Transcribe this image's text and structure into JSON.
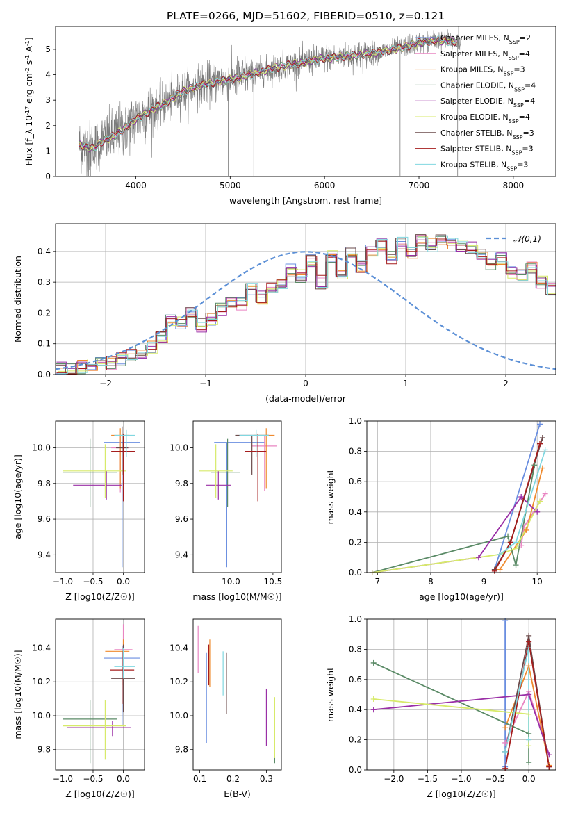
{
  "title": "PLATE=0266, MJD=51602, FIBERID=0510, z=0.121",
  "colors": {
    "Chabrier MILES": "#6a8ee0",
    "Salpeter MILES": "#e985c2",
    "Kroupa MILES": "#ef8a2e",
    "Chabrier ELODIE": "#5a8a66",
    "Salpeter ELODIE": "#9a2fa6",
    "Kroupa ELODIE": "#d7ea6a",
    "Chabrier STELIB": "#6a4a4a",
    "Salpeter STELIB": "#a51d1d",
    "Kroupa STELIB": "#80d7e0",
    "data": "#7a7a7a",
    "normal": "#5b8fd6"
  },
  "chart_data": [
    {
      "id": "spectrum",
      "type": "line",
      "xlabel": "wavelength [Angstrom, rest frame]",
      "ylabel": "Flux [f_λ 10^-17 erg cm^-2 s^-1 A^-1]",
      "xlim": [
        3150,
        8450
      ],
      "ylim": [
        0,
        5.9
      ],
      "xticks": [
        "4000",
        "5000",
        "6000",
        "7000",
        "8000"
      ],
      "yticks": [
        "0",
        "1",
        "2",
        "3",
        "4",
        "5"
      ],
      "legend_position": "top-right",
      "legend": [
        "Chabrier MILES, N_SSP=2",
        "Salpeter MILES, N_SSP=4",
        "Kroupa MILES, N_SSP=3",
        "Chabrier ELODIE, N_SSP=4",
        "Salpeter ELODIE, N_SSP=4",
        "Kroupa ELODIE, N_SSP=4",
        "Chabrier STELIB, N_SSP=3",
        "Salpeter STELIB, N_SSP=3",
        "Kroupa STELIB, N_SSP=3"
      ],
      "continuum": {
        "x": [
          3400,
          3550,
          3650,
          3750,
          3900,
          4000,
          4100,
          4200,
          4300,
          4500,
          4700,
          4900,
          5100,
          5300,
          5500,
          5800,
          6000,
          6300,
          6600,
          6800,
          7000,
          7200,
          7400
        ],
        "y": [
          1.25,
          1.1,
          1.4,
          1.55,
          1.95,
          2.25,
          2.45,
          2.7,
          2.85,
          3.35,
          3.6,
          3.75,
          3.9,
          4.1,
          4.3,
          4.5,
          4.65,
          4.75,
          4.9,
          5.05,
          5.25,
          5.35,
          5.3
        ]
      }
    },
    {
      "id": "residuals",
      "type": "histogram",
      "xlabel": "(data-model)/error",
      "ylabel": "Normed distribution",
      "xlim": [
        -2.5,
        2.5
      ],
      "ylim": [
        0,
        0.49
      ],
      "xticks": [
        "−2",
        "−1",
        "0",
        "1",
        "2"
      ],
      "yticks": [
        "0.0",
        "0.1",
        "0.2",
        "0.3",
        "0.4"
      ],
      "legend": "𝒩(0,1)",
      "legend_position": "top-right",
      "bin_width": 0.1,
      "base_density": [
        0.02,
        0.02,
        0.025,
        0.03,
        0.035,
        0.04,
        0.05,
        0.06,
        0.075,
        0.09,
        0.12,
        0.18,
        0.17,
        0.2,
        0.16,
        0.18,
        0.21,
        0.24,
        0.23,
        0.28,
        0.25,
        0.28,
        0.3,
        0.34,
        0.32,
        0.37,
        0.3,
        0.38,
        0.33,
        0.4,
        0.35,
        0.4,
        0.42,
        0.38,
        0.43,
        0.4,
        0.44,
        0.42,
        0.44,
        0.43,
        0.42,
        0.41,
        0.39,
        0.36,
        0.38,
        0.33,
        0.32,
        0.35,
        0.3,
        0.28,
        0.27,
        0.24,
        0.22,
        0.2,
        0.18,
        0.19,
        0.16,
        0.16,
        0.14,
        0.15,
        0.12,
        0.11,
        0.13,
        0.1,
        0.09,
        0.1,
        0.08,
        0.07,
        0.08,
        0.06,
        0.06,
        0.05,
        0.05,
        0.04,
        0.04,
        0.03,
        0.035,
        0.03,
        0.025,
        0.02
      ]
    },
    {
      "id": "age-vs-Z",
      "type": "errorbar",
      "xlabel": "Z [log10(Z/Z☉)]",
      "ylabel": "age [log10(age/yr)]",
      "xlim": [
        -1.12,
        0.35
      ],
      "ylim": [
        9.3,
        10.15
      ],
      "xticks": [
        "−1.0",
        "−0.5",
        "0.0"
      ],
      "yticks": [
        "9.4",
        "9.6",
        "9.8",
        "10.0"
      ],
      "points": [
        {
          "series": "Chabrier MILES",
          "x": -0.02,
          "xerr": [
            0.3,
            0.3
          ],
          "y": 10.03,
          "yerr": [
            0.7,
            0.0
          ]
        },
        {
          "series": "Salpeter MILES",
          "x": -0.05,
          "xerr": [
            0.15,
            0.15
          ],
          "y": 10.0,
          "yerr": [
            0.25,
            0.07
          ]
        },
        {
          "series": "Kroupa MILES",
          "x": -0.05,
          "xerr": [
            0.15,
            0.15
          ],
          "y": 10.07,
          "yerr": [
            0.3,
            0.04
          ]
        },
        {
          "series": "Chabrier ELODIE",
          "x": -0.55,
          "xerr": [
            0.45,
            0.45
          ],
          "y": 9.86,
          "yerr": [
            0.19,
            0.19
          ]
        },
        {
          "series": "Salpeter ELODIE",
          "x": -0.28,
          "xerr": [
            0.55,
            0.25
          ],
          "y": 9.79,
          "yerr": [
            0.08,
            0.08
          ]
        },
        {
          "series": "Kroupa ELODIE",
          "x": -0.3,
          "xerr": [
            0.7,
            0.35
          ],
          "y": 9.87,
          "yerr": [
            0.15,
            0.15
          ]
        },
        {
          "series": "Chabrier STELIB",
          "x": -0.02,
          "xerr": [
            0.1,
            0.1
          ],
          "y": 10.0,
          "yerr": [
            0.15,
            0.12
          ]
        },
        {
          "series": "Salpeter STELIB",
          "x": 0.0,
          "xerr": [
            0.2,
            0.2
          ],
          "y": 9.98,
          "yerr": [
            0.28,
            0.1
          ]
        },
        {
          "series": "Kroupa STELIB",
          "x": 0.05,
          "xerr": [
            0.2,
            0.15
          ],
          "y": 10.07,
          "yerr": [
            0.12,
            0.03
          ]
        }
      ]
    },
    {
      "id": "age-vs-mass",
      "type": "errorbar",
      "xlabel": "mass [log10(M/M☉)]",
      "ylabel": "",
      "xlim": [
        9.55,
        10.6
      ],
      "ylim": [
        9.3,
        10.15
      ],
      "xticks": [
        "10.0",
        "10.5"
      ],
      "yticks": [
        "9.4",
        "9.6",
        "9.8",
        "10.0"
      ],
      "points": [
        {
          "series": "Chabrier MILES",
          "x": 9.95,
          "xerr": [
            0.15,
            0.45
          ],
          "y": 10.03,
          "yerr": [
            0.7,
            0.0
          ]
        },
        {
          "series": "Salpeter MILES",
          "x": 10.4,
          "xerr": [
            0.15,
            0.15
          ],
          "y": 10.01,
          "yerr": [
            0.25,
            0.06
          ]
        },
        {
          "series": "Kroupa MILES",
          "x": 10.42,
          "xerr": [
            0.15,
            0.1
          ],
          "y": 10.07,
          "yerr": [
            0.3,
            0.04
          ]
        },
        {
          "series": "Chabrier ELODIE",
          "x": 9.96,
          "xerr": [
            0.2,
            0.15
          ],
          "y": 9.86,
          "yerr": [
            0.19,
            0.19
          ]
        },
        {
          "series": "Salpeter ELODIE",
          "x": 9.85,
          "xerr": [
            0.15,
            0.15
          ],
          "y": 9.79,
          "yerr": [
            0.08,
            0.08
          ]
        },
        {
          "series": "Kroupa ELODIE",
          "x": 9.82,
          "xerr": [
            0.2,
            0.2
          ],
          "y": 9.87,
          "yerr": [
            0.15,
            0.15
          ]
        },
        {
          "series": "Chabrier STELIB",
          "x": 10.25,
          "xerr": [
            0.2,
            0.2
          ],
          "y": 10.07,
          "yerr": [
            0.22,
            0.0
          ]
        },
        {
          "series": "Salpeter STELIB",
          "x": 10.32,
          "xerr": [
            0.15,
            0.1
          ],
          "y": 9.98,
          "yerr": [
            0.28,
            0.1
          ]
        },
        {
          "series": "Kroupa STELIB",
          "x": 10.3,
          "xerr": [
            0.2,
            0.15
          ],
          "y": 10.07,
          "yerr": [
            0.12,
            0.03
          ]
        }
      ]
    },
    {
      "id": "weight-vs-age",
      "type": "line",
      "xlabel": "age [log10(age/yr)]",
      "ylabel": "mass weight",
      "xlim": [
        6.8,
        10.35
      ],
      "ylim": [
        0,
        1.0
      ],
      "xticks": [
        "7",
        "8",
        "9",
        "10"
      ],
      "yticks": [
        "0.0",
        "0.2",
        "0.4",
        "0.6",
        "0.8",
        "1.0"
      ],
      "series": [
        {
          "name": "Chabrier MILES",
          "x": [
            9.2,
            10.05
          ],
          "y": [
            0.02,
            0.98
          ]
        },
        {
          "name": "Salpeter MILES",
          "x": [
            9.7,
            9.75,
            10.15
          ],
          "y": [
            0.18,
            0.3,
            0.52
          ]
        },
        {
          "name": "Kroupa MILES",
          "x": [
            9.3,
            9.8,
            10.1
          ],
          "y": [
            0.02,
            0.28,
            0.69
          ]
        },
        {
          "name": "Chabrier ELODIE",
          "x": [
            6.9,
            9.45,
            9.6,
            9.95
          ],
          "y": [
            0.0,
            0.24,
            0.05,
            0.71
          ]
        },
        {
          "name": "Salpeter ELODIE",
          "x": [
            6.9,
            8.9,
            9.7,
            10.0
          ],
          "y": [
            0.0,
            0.1,
            0.5,
            0.4
          ]
        },
        {
          "name": "Kroupa ELODIE",
          "x": [
            6.9,
            9.3,
            9.6,
            10.05
          ],
          "y": [
            0.0,
            0.12,
            0.16,
            0.47
          ]
        },
        {
          "name": "Chabrier STELIB",
          "x": [
            9.2,
            9.5,
            10.1
          ],
          "y": [
            0.02,
            0.2,
            0.89
          ]
        },
        {
          "name": "Salpeter STELIB",
          "x": [
            9.2,
            9.5,
            10.05
          ],
          "y": [
            0.01,
            0.2,
            0.85
          ]
        },
        {
          "name": "Kroupa STELIB",
          "x": [
            9.3,
            9.6,
            10.15
          ],
          "y": [
            0.12,
            0.2,
            0.81
          ]
        }
      ]
    },
    {
      "id": "mass-vs-Z",
      "type": "errorbar",
      "xlabel": "Z [log10(Z/Z☉)]",
      "ylabel": "mass [log10(M/M☉)]",
      "xlim": [
        -1.12,
        0.35
      ],
      "ylim": [
        9.68,
        10.57
      ],
      "xticks": [
        "−1.0",
        "−0.5",
        "0.0"
      ],
      "yticks": [
        "9.8",
        "10.0",
        "10.2",
        "10.4"
      ],
      "points": [
        {
          "series": "Chabrier MILES",
          "x": -0.02,
          "xerr": [
            0.3,
            0.3
          ],
          "y": 10.34,
          "yerr": [
            0.4,
            0.07
          ]
        },
        {
          "series": "Salpeter MILES",
          "x": 0.0,
          "xerr": [
            0.15,
            0.15
          ],
          "y": 10.39,
          "yerr": [
            0.15,
            0.15
          ]
        },
        {
          "series": "Kroupa MILES",
          "x": 0.0,
          "xerr": [
            0.3,
            0.1
          ],
          "y": 10.38,
          "yerr": [
            0.2,
            0.07
          ]
        },
        {
          "series": "Chabrier ELODIE",
          "x": -0.55,
          "xerr": [
            0.45,
            0.45
          ],
          "y": 9.98,
          "yerr": [
            0.26,
            0.11
          ]
        },
        {
          "series": "Salpeter ELODIE",
          "x": -0.18,
          "xerr": [
            0.75,
            0.3
          ],
          "y": 9.93,
          "yerr": [
            0.05,
            0.04
          ]
        },
        {
          "series": "Kroupa ELODIE",
          "x": -0.3,
          "xerr": [
            0.7,
            0.35
          ],
          "y": 9.94,
          "yerr": [
            0.2,
            0.15
          ]
        },
        {
          "series": "Chabrier STELIB",
          "x": 0.0,
          "xerr": [
            0.2,
            0.2
          ],
          "y": 10.22,
          "yerr": [
            0.2,
            0.2
          ]
        },
        {
          "series": "Salpeter STELIB",
          "x": -0.02,
          "xerr": [
            0.2,
            0.2
          ],
          "y": 10.27,
          "yerr": [
            0.2,
            0.11
          ]
        },
        {
          "series": "Kroupa STELIB",
          "x": 0.0,
          "xerr": [
            0.15,
            0.2
          ],
          "y": 10.29,
          "yerr": [
            0.07,
            0.11
          ]
        }
      ]
    },
    {
      "id": "mass-vs-EBV",
      "type": "errorbar",
      "xlabel": "E(B-V)",
      "ylabel": "",
      "xlim": [
        0.08,
        0.345
      ],
      "ylim": [
        9.68,
        10.57
      ],
      "xticks": [
        "0.1",
        "0.2",
        "0.3"
      ],
      "yticks": [
        "9.8",
        "10.0",
        "10.2",
        "10.4"
      ],
      "points": [
        {
          "series": "Chabrier MILES",
          "x": 0.12,
          "y": 10.2,
          "yerr": [
            0.36,
            0.17
          ]
        },
        {
          "series": "Salpeter MILES",
          "x": 0.095,
          "y": 10.39,
          "yerr": [
            0.14,
            0.14
          ]
        },
        {
          "series": "Kroupa MILES",
          "x": 0.13,
          "y": 10.3,
          "yerr": [
            0.13,
            0.15
          ]
        },
        {
          "series": "Chabrier ELODIE",
          "x": 0.325,
          "y": 9.9,
          "yerr": [
            0.18,
            0.2
          ]
        },
        {
          "series": "Salpeter ELODIE",
          "x": 0.3,
          "y": 9.98,
          "yerr": [
            0.16,
            0.18
          ]
        },
        {
          "series": "Kroupa ELODIE",
          "x": 0.325,
          "y": 9.93,
          "yerr": [
            0.18,
            0.18
          ]
        },
        {
          "series": "Chabrier STELIB",
          "x": 0.18,
          "y": 10.19,
          "yerr": [
            0.18,
            0.18
          ]
        },
        {
          "series": "Salpeter STELIB",
          "x": 0.127,
          "y": 10.3,
          "yerr": [
            0.12,
            0.12
          ]
        },
        {
          "series": "Kroupa STELIB",
          "x": 0.17,
          "y": 10.25,
          "yerr": [
            0.13,
            0.13
          ]
        }
      ]
    },
    {
      "id": "weight-vs-Z",
      "type": "line",
      "xlabel": "Z [log10(Z/Z☉)]",
      "ylabel": "mass weight",
      "xlim": [
        -2.4,
        0.4
      ],
      "ylim": [
        0,
        1.0
      ],
      "xticks": [
        "−2.0",
        "−1.5",
        "−1.0",
        "−0.5",
        "0.0"
      ],
      "yticks": [
        "0.0",
        "0.2",
        "0.4",
        "0.6",
        "0.8",
        "1.0"
      ],
      "series": [
        {
          "name": "Chabrier MILES",
          "x": [
            -0.35,
            -0.35
          ],
          "y": [
            0.02,
            0.99
          ]
        },
        {
          "name": "Salpeter MILES",
          "x": [
            -0.35,
            0.0,
            0.3
          ],
          "y": [
            0.18,
            0.52,
            0.1
          ]
        },
        {
          "name": "Kroupa MILES",
          "x": [
            -0.35,
            0.0,
            0.3
          ],
          "y": [
            0.28,
            0.69,
            0.03
          ]
        },
        {
          "name": "Chabrier ELODIE",
          "x": [
            -2.3,
            0.0,
            0.0
          ],
          "y": [
            0.71,
            0.24,
            0.05
          ]
        },
        {
          "name": "Salpeter ELODIE",
          "x": [
            -2.3,
            0.0,
            0.3
          ],
          "y": [
            0.4,
            0.5,
            0.1
          ]
        },
        {
          "name": "Kroupa ELODIE",
          "x": [
            -2.3,
            0.0,
            0.0
          ],
          "y": [
            0.47,
            0.37,
            0.16
          ]
        },
        {
          "name": "Chabrier STELIB",
          "x": [
            -0.35,
            0.0,
            0.3
          ],
          "y": [
            0.12,
            0.89,
            0.02
          ]
        },
        {
          "name": "Salpeter STELIB",
          "x": [
            -0.35,
            0.0,
            0.3
          ],
          "y": [
            0.01,
            0.85,
            0.02
          ]
        },
        {
          "name": "Kroupa STELIB",
          "x": [
            -0.35,
            0.0,
            0.0
          ],
          "y": [
            0.12,
            0.81,
            0.2
          ]
        }
      ]
    }
  ]
}
